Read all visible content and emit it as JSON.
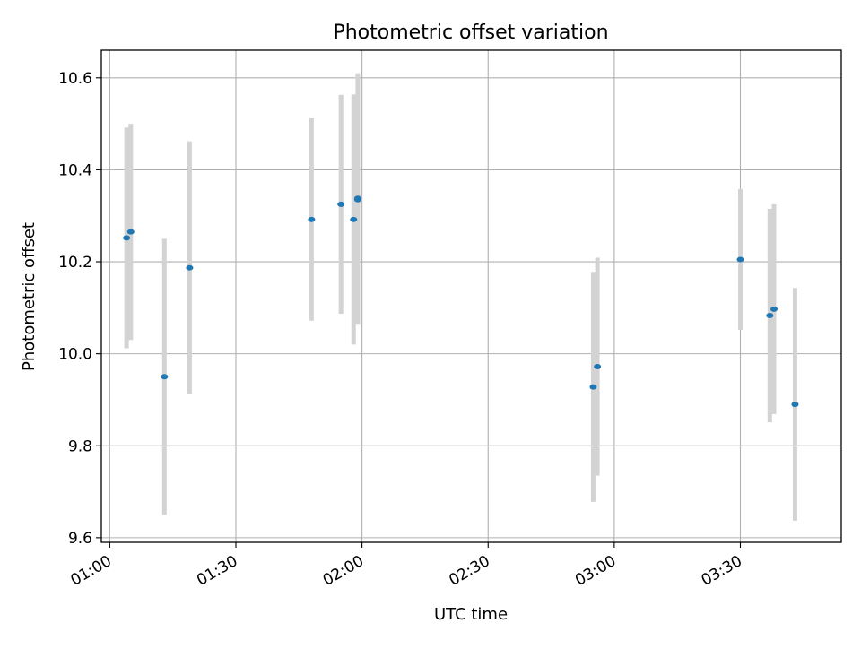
{
  "chart_data": {
    "type": "scatter",
    "title": "Photometric offset variation",
    "xlabel": "UTC time",
    "ylabel": "Photometric offset",
    "x_unit": "UTC time (HH:MM)",
    "xlim": [
      "00:58",
      "03:54"
    ],
    "ylim": [
      9.59,
      10.66
    ],
    "grid": true,
    "x_ticks": [
      "01:00",
      "01:30",
      "02:00",
      "02:30",
      "03:00",
      "03:30"
    ],
    "y_ticks": [
      "9.6",
      "9.8",
      "10.0",
      "10.2",
      "10.4",
      "10.6"
    ],
    "y_tick_values": [
      9.6,
      9.8,
      10.0,
      10.2,
      10.4,
      10.6
    ],
    "marker_color": "#1f77b4",
    "errorbar_color": "#d3d3d3",
    "points": [
      {
        "x": "01:04",
        "y": 10.252,
        "err": 0.24
      },
      {
        "x": "01:05",
        "y": 10.265,
        "err": 0.235
      },
      {
        "x": "01:13",
        "y": 9.95,
        "err": 0.3
      },
      {
        "x": "01:19",
        "y": 10.187,
        "err": 0.275
      },
      {
        "x": "01:48",
        "y": 10.292,
        "err": 0.22
      },
      {
        "x": "01:55",
        "y": 10.325,
        "err": 0.238
      },
      {
        "x": "01:58",
        "y": 10.292,
        "err": 0.272
      },
      {
        "x": "01:59",
        "y": 10.335,
        "err": 0.27
      },
      {
        "x": "01:59",
        "y": 10.338,
        "err": 0.272
      },
      {
        "x": "02:55",
        "y": 9.928,
        "err": 0.25
      },
      {
        "x": "02:56",
        "y": 9.972,
        "err": 0.237
      },
      {
        "x": "03:30",
        "y": 10.205,
        "err": 0.153
      },
      {
        "x": "03:37",
        "y": 10.083,
        "err": 0.232
      },
      {
        "x": "03:38",
        "y": 10.097,
        "err": 0.228
      },
      {
        "x": "03:43",
        "y": 9.89,
        "err": 0.253
      }
    ]
  }
}
